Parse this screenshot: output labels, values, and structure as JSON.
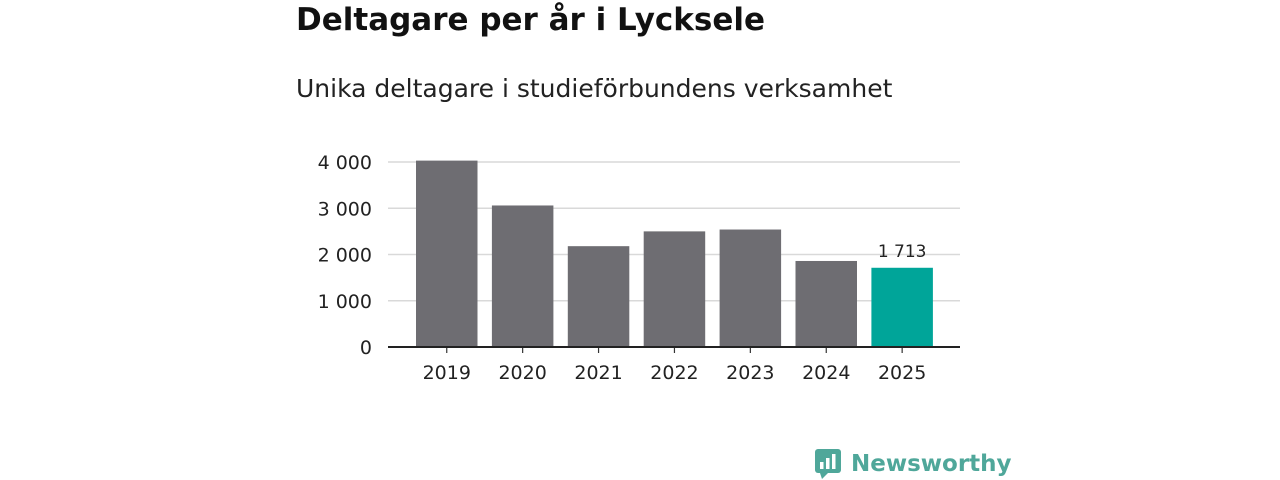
{
  "chart_data": {
    "type": "bar",
    "title": "Deltagare per år i Lycksele",
    "subtitle": "Unika deltagare i studieförbundens verksamhet",
    "categories": [
      "2019",
      "2020",
      "2021",
      "2022",
      "2023",
      "2024",
      "2025"
    ],
    "values": [
      4030,
      3060,
      2180,
      2500,
      2540,
      1860,
      1713
    ],
    "ylim": [
      0,
      4000
    ],
    "yticks": [
      0,
      1000,
      2000,
      3000,
      4000
    ],
    "ytick_labels": [
      "0",
      "1 000",
      "2 000",
      "3 000",
      "4 000"
    ],
    "grid": true,
    "highlight_index": 6,
    "data_labels": [
      {
        "index": 6,
        "text": "1 713"
      }
    ],
    "colors": {
      "default": "#6e6d72",
      "highlight": "#00a599"
    }
  },
  "brand": {
    "name": "Newsworthy",
    "color": "#4fa79a",
    "icon": "newsworthy-logo-icon"
  }
}
